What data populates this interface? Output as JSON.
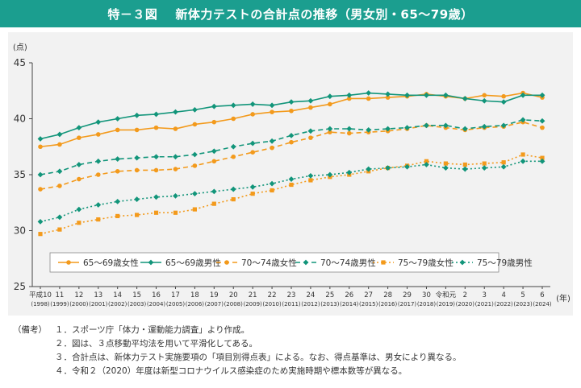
{
  "header": {
    "figure_number": "特－３図",
    "title": "新体力テストの合計点の推移（男女別・65～79歳）"
  },
  "chart_data": {
    "type": "line",
    "title": "新体力テストの合計点の推移（男女別・65～79歳）",
    "ylabel": "(点)",
    "xlabel": "(年)",
    "ylim": [
      25,
      45
    ],
    "yticks": [
      25,
      30,
      35,
      40,
      45
    ],
    "grid": false,
    "legend_placement": "bottom-inside",
    "categories": [
      [
        "平成10",
        "(1998)"
      ],
      [
        "11",
        "(1999)"
      ],
      [
        "12",
        "(2000)"
      ],
      [
        "13",
        "(2001)"
      ],
      [
        "14",
        "(2002)"
      ],
      [
        "15",
        "(2003)"
      ],
      [
        "16",
        "(2004)"
      ],
      [
        "17",
        "(2005)"
      ],
      [
        "18",
        "(2006)"
      ],
      [
        "19",
        "(2007)"
      ],
      [
        "20",
        "(2008)"
      ],
      [
        "21",
        "(2009)"
      ],
      [
        "22",
        "(2010)"
      ],
      [
        "23",
        "(2011)"
      ],
      [
        "24",
        "(2012)"
      ],
      [
        "25",
        "(2013)"
      ],
      [
        "26",
        "(2014)"
      ],
      [
        "27",
        "(2015)"
      ],
      [
        "28",
        "(2016)"
      ],
      [
        "29",
        "(2017)"
      ],
      [
        "30",
        "(2018)"
      ],
      [
        "令和元",
        "(2019)"
      ],
      [
        "2",
        "(2020)"
      ],
      [
        "3",
        "(2021)"
      ],
      [
        "4",
        "(2022)"
      ],
      [
        "5",
        "(2023)"
      ],
      [
        "6",
        "(2024)"
      ]
    ],
    "series": [
      {
        "name": "65～69歳女性",
        "color": "#f39a1c",
        "dash": "solid",
        "marker": "circle",
        "values": [
          37.5,
          37.7,
          38.3,
          38.6,
          39.0,
          39.0,
          39.2,
          39.1,
          39.5,
          39.7,
          40.0,
          40.4,
          40.6,
          40.7,
          41.0,
          41.3,
          41.8,
          41.8,
          41.9,
          42.0,
          42.2,
          42.0,
          41.8,
          42.1,
          42.0,
          42.3,
          41.9
        ]
      },
      {
        "name": "65～69歳男性",
        "color": "#12957a",
        "dash": "solid",
        "marker": "diamond",
        "values": [
          38.2,
          38.6,
          39.2,
          39.7,
          40.0,
          40.3,
          40.4,
          40.6,
          40.8,
          41.1,
          41.2,
          41.3,
          41.2,
          41.5,
          41.6,
          42.0,
          42.1,
          42.3,
          42.2,
          42.1,
          42.1,
          42.1,
          41.8,
          41.6,
          41.5,
          42.1,
          42.1
        ]
      },
      {
        "name": "70～74歳女性",
        "color": "#f39a1c",
        "dash": "dashed",
        "marker": "circle",
        "values": [
          33.7,
          34.0,
          34.6,
          35.0,
          35.3,
          35.4,
          35.4,
          35.5,
          35.8,
          36.2,
          36.6,
          37.0,
          37.4,
          37.9,
          38.3,
          38.8,
          38.7,
          38.8,
          38.9,
          39.1,
          39.4,
          39.2,
          39.0,
          39.2,
          39.3,
          39.7,
          39.2
        ]
      },
      {
        "name": "70～74歳男性",
        "color": "#12957a",
        "dash": "dashed",
        "marker": "diamond",
        "values": [
          35.0,
          35.3,
          35.9,
          36.2,
          36.4,
          36.5,
          36.6,
          36.6,
          36.8,
          37.1,
          37.5,
          37.8,
          38.0,
          38.5,
          38.9,
          39.1,
          39.1,
          39.0,
          39.1,
          39.2,
          39.4,
          39.4,
          39.1,
          39.3,
          39.4,
          39.9,
          39.8
        ]
      },
      {
        "name": "75～79歳女性",
        "color": "#f39a1c",
        "dash": "dotted",
        "marker": "square",
        "values": [
          29.7,
          30.1,
          30.7,
          31.0,
          31.3,
          31.4,
          31.6,
          31.6,
          31.9,
          32.4,
          32.8,
          33.3,
          33.6,
          34.1,
          34.5,
          34.8,
          35.0,
          35.3,
          35.6,
          35.8,
          36.2,
          36.0,
          35.9,
          36.0,
          36.1,
          36.8,
          36.5
        ]
      },
      {
        "name": "75～79歳男性",
        "color": "#12957a",
        "dash": "dotted",
        "marker": "diamond",
        "values": [
          30.8,
          31.2,
          31.9,
          32.3,
          32.6,
          32.8,
          33.0,
          33.1,
          33.3,
          33.5,
          33.7,
          33.9,
          34.2,
          34.6,
          34.9,
          35.0,
          35.2,
          35.5,
          35.6,
          35.7,
          35.9,
          35.6,
          35.5,
          35.6,
          35.7,
          36.2,
          36.2
        ]
      }
    ]
  },
  "notes": {
    "head": "（備考）",
    "items": [
      "１．スポーツ庁「体力・運動能力調査」より作成。",
      "２．図は、３点移動平均法を用いて平滑化してある。",
      "３．合計点は、新体力テスト実施要項の「項目別得点表」による。なお、得点基準は、男女により異なる。",
      "４．令和２（2020）年度は新型コロナウイルス感染症のため実施時期や標本数等が異なる。"
    ]
  }
}
